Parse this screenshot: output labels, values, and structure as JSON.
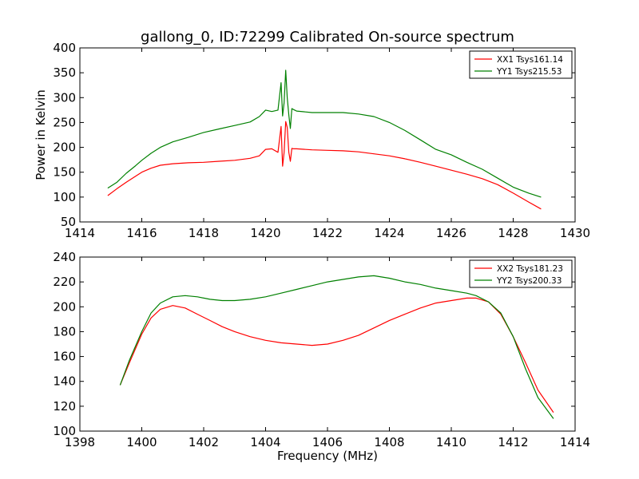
{
  "title": "gallong_0, ID:72299 Calibrated On-source spectrum",
  "chart_data": [
    {
      "type": "line",
      "xlim": [
        1414,
        1430
      ],
      "ylim": [
        50,
        400
      ],
      "xticks": [
        "1414",
        "1416",
        "1418",
        "1420",
        "1422",
        "1424",
        "1426",
        "1428",
        "1430"
      ],
      "yticks": [
        "50",
        "100",
        "150",
        "200",
        "250",
        "300",
        "350",
        "400"
      ],
      "xlabel": "",
      "ylabel": "Power in Kelvin",
      "grid": false,
      "legend_position": "top-right",
      "series": [
        {
          "name": "XX1 Tsys161.14",
          "color": "#ff0000",
          "x": [
            1414.9,
            1415.2,
            1415.5,
            1415.8,
            1416.0,
            1416.3,
            1416.6,
            1417.0,
            1417.5,
            1418.0,
            1418.5,
            1419.0,
            1419.5,
            1419.8,
            1420.0,
            1420.2,
            1420.4,
            1420.5,
            1420.55,
            1420.6,
            1420.65,
            1420.7,
            1420.75,
            1420.8,
            1420.85,
            1420.9,
            1421.0,
            1421.5,
            1422.0,
            1422.5,
            1423.0,
            1423.5,
            1424.0,
            1424.5,
            1425.0,
            1425.5,
            1426.0,
            1426.5,
            1427.0,
            1427.5,
            1428.0,
            1428.5,
            1428.9
          ],
          "y": [
            103,
            117,
            130,
            142,
            150,
            158,
            164,
            167,
            169,
            170,
            172,
            174,
            178,
            183,
            196,
            197,
            190,
            242,
            162,
            190,
            252,
            240,
            190,
            172,
            198,
            197,
            197,
            195,
            194,
            193,
            191,
            187,
            183,
            177,
            170,
            162,
            154,
            146,
            137,
            125,
            108,
            90,
            76
          ]
        },
        {
          "name": "YY1 Tsys215.53",
          "color": "#008000",
          "x": [
            1414.9,
            1415.2,
            1415.5,
            1415.8,
            1416.0,
            1416.3,
            1416.6,
            1417.0,
            1417.5,
            1418.0,
            1418.5,
            1419.0,
            1419.5,
            1419.8,
            1420.0,
            1420.2,
            1420.4,
            1420.5,
            1420.55,
            1420.6,
            1420.65,
            1420.7,
            1420.75,
            1420.8,
            1420.85,
            1420.9,
            1421.0,
            1421.5,
            1422.0,
            1422.5,
            1423.0,
            1423.5,
            1424.0,
            1424.5,
            1425.0,
            1425.5,
            1426.0,
            1426.5,
            1427.0,
            1427.5,
            1428.0,
            1428.5,
            1428.9
          ],
          "y": [
            118,
            130,
            148,
            163,
            174,
            188,
            200,
            211,
            220,
            230,
            237,
            244,
            251,
            262,
            275,
            272,
            275,
            330,
            263,
            290,
            355,
            300,
            265,
            238,
            278,
            276,
            273,
            270,
            270,
            270,
            267,
            262,
            250,
            234,
            215,
            196,
            185,
            170,
            156,
            138,
            120,
            108,
            100
          ]
        }
      ]
    },
    {
      "type": "line",
      "xlim": [
        1398,
        1414
      ],
      "ylim": [
        100,
        240
      ],
      "xticks": [
        "1398",
        "1400",
        "1402",
        "1404",
        "1406",
        "1408",
        "1410",
        "1412",
        "1414"
      ],
      "yticks": [
        "100",
        "120",
        "140",
        "160",
        "180",
        "200",
        "220",
        "240"
      ],
      "xlabel": "Frequency (MHz)",
      "ylabel": "",
      "grid": false,
      "legend_position": "top-right",
      "series": [
        {
          "name": "XX2 Tsys181.23",
          "color": "#ff0000",
          "x": [
            1399.3,
            1399.6,
            1400.0,
            1400.3,
            1400.6,
            1401.0,
            1401.4,
            1401.8,
            1402.2,
            1402.6,
            1403.0,
            1403.5,
            1404.0,
            1404.5,
            1405.0,
            1405.5,
            1406.0,
            1406.5,
            1407.0,
            1407.5,
            1408.0,
            1408.5,
            1409.0,
            1409.5,
            1410.0,
            1410.5,
            1410.8,
            1411.2,
            1411.6,
            1412.0,
            1412.4,
            1412.8,
            1413.3
          ],
          "y": [
            137,
            155,
            178,
            191,
            198,
            201,
            199,
            194,
            189,
            184,
            180,
            176,
            173,
            171,
            170,
            169,
            170,
            173,
            177,
            183,
            189,
            194,
            199,
            203,
            205,
            207,
            207,
            204,
            194,
            176,
            155,
            133,
            115
          ]
        },
        {
          "name": "YY2 Tsys200.33",
          "color": "#008000",
          "x": [
            1399.3,
            1399.6,
            1400.0,
            1400.3,
            1400.6,
            1401.0,
            1401.4,
            1401.8,
            1402.2,
            1402.6,
            1403.0,
            1403.5,
            1404.0,
            1404.5,
            1405.0,
            1405.5,
            1406.0,
            1406.5,
            1407.0,
            1407.5,
            1408.0,
            1408.5,
            1409.0,
            1409.5,
            1410.0,
            1410.5,
            1410.8,
            1411.2,
            1411.6,
            1412.0,
            1412.4,
            1412.8,
            1413.3
          ],
          "y": [
            137,
            157,
            180,
            195,
            203,
            208,
            209,
            208,
            206,
            205,
            205,
            206,
            208,
            211,
            214,
            217,
            220,
            222,
            224,
            225,
            223,
            220,
            218,
            215,
            213,
            211,
            209,
            204,
            195,
            176,
            150,
            127,
            110
          ]
        }
      ]
    }
  ]
}
